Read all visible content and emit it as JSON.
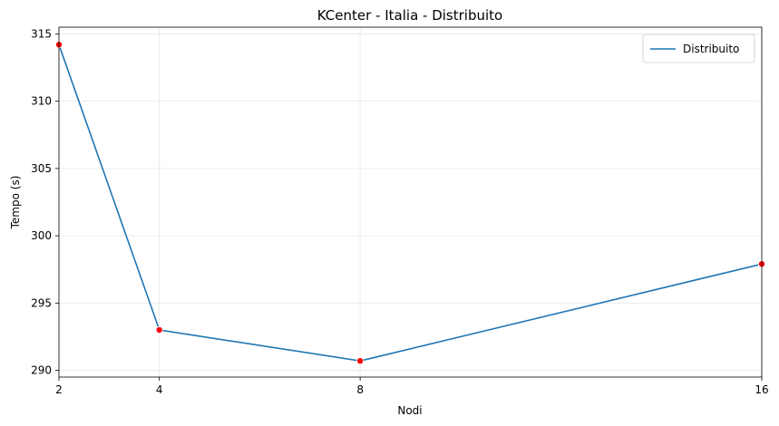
{
  "chart_data": {
    "type": "line",
    "title": "KCenter - Italia - Distribuito",
    "xlabel": "Nodi",
    "ylabel": "Tempo (s)",
    "x": [
      2,
      4,
      8,
      16
    ],
    "x_ticks": [
      2,
      4,
      8,
      16
    ],
    "x_tick_labels": [
      "2",
      "4",
      "8",
      "16"
    ],
    "y_ticks": [
      290,
      295,
      300,
      305,
      310,
      315
    ],
    "y_tick_labels": [
      "290",
      "295",
      "300",
      "305",
      "310",
      "315"
    ],
    "xlim": [
      2,
      16
    ],
    "ylim": [
      289.5,
      315.5
    ],
    "grid": true,
    "legend_position": "top-right",
    "series": [
      {
        "name": "Distribuito",
        "values": [
          314.2,
          293.0,
          290.7,
          297.9
        ],
        "line_color": "#1f77b4",
        "marker_color": "#ff0000"
      }
    ]
  }
}
